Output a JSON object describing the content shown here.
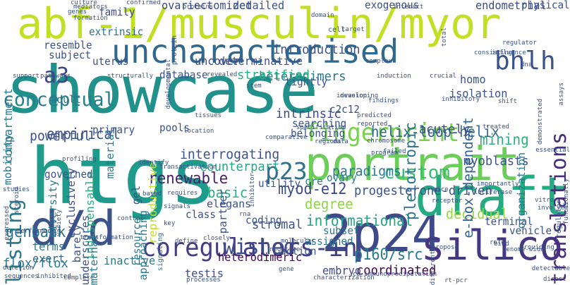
{
  "words": [
    {
      "text": "showcase",
      "color": "#21918c",
      "rotated": false
    },
    {
      "text": "htgs",
      "color": "#1e9b8a",
      "rotated": false
    },
    {
      "text": "abf-1/musculin/myor",
      "color": "#c2df23",
      "rotated": false
    },
    {
      "text": "uncharacterised",
      "color": "#31688e",
      "rotated": false
    },
    {
      "text": "portrait",
      "color": "#6ccd5a",
      "rotated": false
    },
    {
      "text": "2p24",
      "color": "#3e4a89",
      "rotated": false
    },
    {
      "text": "draft",
      "color": "#25ab82",
      "rotated": false
    },
    {
      "text": "d/d",
      "color": "#3b528b",
      "rotated": false
    },
    {
      "text": "silico",
      "color": "#453781",
      "rotated": false
    },
    {
      "text": "coregulators-in",
      "color": "#433d84",
      "rotated": false
    },
    {
      "text": "fingerprint",
      "color": "#7ad151",
      "rotated": false
    },
    {
      "text": "translations",
      "color": "#472c7a",
      "rotated": true
    },
    {
      "text": "wished",
      "color": "#3e4a89",
      "rotated": false
    },
    {
      "text": "listing",
      "color": "#2a788e",
      "rotated": true
    },
    {
      "text": "helix-loop-helix",
      "color": "#31688e",
      "rotated": false
    },
    {
      "text": "bhlh",
      "color": "#3b528b",
      "rotated": false
    },
    {
      "text": "p23",
      "color": "#2c728e",
      "rotated": false
    },
    {
      "text": "a3",
      "color": "#414487",
      "rotated": false
    },
    {
      "text": "custom",
      "color": "#3dbc74",
      "rotated": false
    },
    {
      "text": "renewable",
      "color": "#481f70",
      "rotated": false
    },
    {
      "text": "empirical",
      "color": "#3b528b",
      "rotated": false
    },
    {
      "text": "informational",
      "color": "#22a785",
      "rotated": false
    },
    {
      "text": "myod-e12",
      "color": "#3e4a89",
      "rotated": false
    },
    {
      "text": "conceptual",
      "color": "#277f8e",
      "rotated": false
    },
    {
      "text": "genbank",
      "color": "#2c728e",
      "rotated": false
    },
    {
      "text": "p160/src",
      "color": "#297a8e",
      "rotated": false
    },
    {
      "text": "decidual",
      "color": "#95d840",
      "rotated": false
    },
    {
      "text": "mining",
      "color": "#2db27d",
      "rotated": false
    },
    {
      "text": "basic",
      "color": "#29af7f",
      "rotated": false
    },
    {
      "text": "degree",
      "color": "#8fd744",
      "rotated": false
    },
    {
      "text": "introduction",
      "color": "#3b528b",
      "rotated": false
    },
    {
      "text": "intrinsic",
      "color": "#3e4a89",
      "rotated": false
    },
    {
      "text": "stromal",
      "color": "#3b528b",
      "rotated": false
    },
    {
      "text": "heterodimers",
      "color": "#2a788e",
      "rotated": false
    },
    {
      "text": "coordinated",
      "color": "#440154",
      "rotated": false
    },
    {
      "text": "pleiotropic",
      "color": "#2c728e",
      "rotated": true
    },
    {
      "text": "e-box-dependent",
      "color": "#33638d",
      "rotated": true
    },
    {
      "text": "interrogating",
      "color": "#3b528b",
      "rotated": false
    },
    {
      "text": "paradigms",
      "color": "#2a788e",
      "rotated": false
    },
    {
      "text": "myoblasts",
      "color": "#3b528b",
      "rotated": false
    },
    {
      "text": "counterpart",
      "color": "#22a785",
      "rotated": false
    },
    {
      "text": "powerful",
      "color": "#3b528b",
      "rotated": false
    },
    {
      "text": "acutely",
      "color": "#3e4a89",
      "rotated": false
    },
    {
      "text": "stratified",
      "color": "#26ad81",
      "rotated": false
    },
    {
      "text": "progesterone-driven",
      "color": "#3b528b",
      "rotated": false
    },
    {
      "text": "heterodimeric",
      "color": "#440154",
      "rotated": false
    },
    {
      "text": "terms",
      "color": "#2a788e",
      "rotated": false
    },
    {
      "text": "flox/flox",
      "color": "#2a788e",
      "rotated": false
    },
    {
      "text": "exert",
      "color": "#31688e",
      "rotated": false
    },
    {
      "text": "testis",
      "color": "#3e4a89",
      "rotated": false
    },
    {
      "text": "inactive",
      "color": "#2a788e",
      "rotated": false
    },
    {
      "text": "embryo",
      "color": "#3e4a89",
      "rotated": false
    },
    {
      "text": "ovariectomized",
      "color": "#3e4a89",
      "rotated": false
    },
    {
      "text": "detailed",
      "color": "#3b528b",
      "rotated": false
    },
    {
      "text": "endometrial",
      "color": "#3e4a89",
      "rotated": false
    },
    {
      "text": "physical",
      "color": "#3b528b",
      "rotated": false
    },
    {
      "text": "exogenous",
      "color": "#3b528b",
      "rotated": false
    },
    {
      "text": "uncover",
      "color": "#3e4a89",
      "rotated": false
    },
    {
      "text": "determinative",
      "color": "#3b528b",
      "rotated": false
    },
    {
      "text": "isolation",
      "color": "#3b528b",
      "rotated": false
    },
    {
      "text": "homo",
      "color": "#3b528b",
      "rotated": false
    },
    {
      "text": "family",
      "color": "#3e4a89",
      "rotated": false
    },
    {
      "text": "extrinsic",
      "color": "#2c728e",
      "rotated": false
    },
    {
      "text": "uterus",
      "color": "#3b528b",
      "rotated": false
    },
    {
      "text": "resemble",
      "color": "#3b528b",
      "rotated": false
    },
    {
      "text": "subject",
      "color": "#3b528b",
      "rotated": false
    },
    {
      "text": "compartment",
      "color": "#2a788e",
      "rotated": true
    },
    {
      "text": "database",
      "color": "#3b528b",
      "rotated": false
    },
    {
      "text": "tightly",
      "color": "#3b528b",
      "rotated": false
    },
    {
      "text": "searching",
      "color": "#3b528b",
      "rotated": false
    },
    {
      "text": "belonging",
      "color": "#3b528b",
      "rotated": false
    },
    {
      "text": "c2c12",
      "color": "#3b528b",
      "rotated": false
    },
    {
      "text": "adult",
      "color": "#2a788e",
      "rotated": false
    },
    {
      "text": "mobility",
      "color": "#2a788e",
      "rotated": true
    },
    {
      "text": "indispensable",
      "color": "#29af7f",
      "rotated": true
    },
    {
      "text": "pools",
      "color": "#3b528b",
      "rotated": false
    },
    {
      "text": "primary",
      "color": "#3b528b",
      "rotated": false
    },
    {
      "text": "exclusively",
      "color": "#3b528b",
      "rotated": true
    },
    {
      "text": "material",
      "color": "#2a788e",
      "rotated": true
    },
    {
      "text": "reproductive",
      "color": "#c8e020",
      "rotated": true
    },
    {
      "text": "governed",
      "color": "#3b528b",
      "rotated": false
    },
    {
      "text": "utility",
      "color": "#3b528b",
      "rotated": false
    },
    {
      "text": "resource",
      "color": "#2a788e",
      "rotated": true
    },
    {
      "text": "elegans",
      "color": "#3b528b",
      "rotated": false
    },
    {
      "text": "diversity",
      "color": "#2a788e",
      "rotated": true
    },
    {
      "text": "underscores",
      "color": "#3b528b",
      "rotated": true
    },
    {
      "text": "barely",
      "color": "#3b528b",
      "rotated": true
    },
    {
      "text": "approaching",
      "color": "#2a788e",
      "rotated": true
    },
    {
      "text": "partner",
      "color": "#3b528b",
      "rotated": true
    },
    {
      "text": "class",
      "color": "#3b528b",
      "rotated": false
    },
    {
      "text": "coding",
      "color": "#3b528b",
      "rotated": false
    },
    {
      "text": "action",
      "color": "#3b528b",
      "rotated": false
    },
    {
      "text": "assigned",
      "color": "#2a788e",
      "rotated": false
    },
    {
      "text": "subset",
      "color": "#2a788e",
      "rotated": false
    },
    {
      "text": "vehicle",
      "color": "#3b528b",
      "rotated": false
    },
    {
      "text": "terminal",
      "color": "#3b528b",
      "rotated": false
    },
    {
      "text": "ovary",
      "color": "#2a788e",
      "rotated": false
    },
    {
      "text": "cre",
      "color": "#2a788e",
      "rotated": false
    },
    {
      "text": "gel",
      "color": "#3b528b",
      "rotated": true
    },
    {
      "text": "maternal",
      "color": "#2a788e",
      "rotated": true
    },
    {
      "text": "organization",
      "color": "#2a788e",
      "rotated": true
    },
    {
      "text": "signaling",
      "color": "#2a788e",
      "rotated": true
    },
    {
      "text": "regulator",
      "color": "#3b528b",
      "rotated": true
    },
    {
      "text": "protein",
      "color": "#3b528b",
      "rotated": true
    },
    {
      "text": "culture",
      "color": "#3b528b",
      "rotated": false
    },
    {
      "text": "mediators",
      "color": "#3b528b",
      "rotated": false
    },
    {
      "text": "confirmed",
      "color": "#3b528b",
      "rotated": false
    },
    {
      "text": "proteins",
      "color": "#3b528b",
      "rotated": false
    },
    {
      "text": "domain",
      "color": "#3b528b",
      "rotated": false
    },
    {
      "text": "interact",
      "color": "#3b528b",
      "rotated": false
    },
    {
      "text": "genes",
      "color": "#3b528b",
      "rotated": false
    },
    {
      "text": "formation",
      "color": "#3b528b",
      "rotated": false
    },
    {
      "text": "developmental",
      "color": "#3b528b",
      "rotated": true
    },
    {
      "text": "cell",
      "color": "#3b528b",
      "rotated": false
    },
    {
      "text": "target",
      "color": "#3b528b",
      "rotated": false
    },
    {
      "text": "total",
      "color": "#3b528b",
      "rotated": true
    },
    {
      "text": "regulator",
      "color": "#3b528b",
      "rotated": false
    },
    {
      "text": "consisting",
      "color": "#3b528b",
      "rotated": false
    },
    {
      "text": "influence",
      "color": "#3b528b",
      "rotated": false
    },
    {
      "text": "complex",
      "color": "#3b528b",
      "rotated": false
    },
    {
      "text": "induction",
      "color": "#3b528b",
      "rotated": false
    },
    {
      "text": "crucial",
      "color": "#3b528b",
      "rotated": false
    },
    {
      "text": "dna",
      "color": "#3b528b",
      "rotated": false
    },
    {
      "text": "support",
      "color": "#3b528b",
      "rotated": false
    },
    {
      "text": "pathways",
      "color": "#3b528b",
      "rotated": false
    },
    {
      "text": "structurally",
      "color": "#3b528b",
      "rotated": false
    },
    {
      "text": "revealed",
      "color": "#3b528b",
      "rotated": false
    },
    {
      "text": "stem",
      "color": "#3b528b",
      "rotated": false
    },
    {
      "text": "developing",
      "color": "#3b528b",
      "rotated": false
    },
    {
      "text": "findings",
      "color": "#3b528b",
      "rotated": false
    },
    {
      "text": "invasion",
      "color": "#3b528b",
      "rotated": false
    },
    {
      "text": "inhibitory",
      "color": "#3b528b",
      "rotated": false
    },
    {
      "text": "shift",
      "color": "#3b528b",
      "rotated": false
    },
    {
      "text": "predicted",
      "color": "#3b528b",
      "rotated": false
    },
    {
      "text": "reported",
      "color": "#3b528b",
      "rotated": false
    },
    {
      "text": "demonstrated",
      "color": "#3b528b",
      "rotated": true
    },
    {
      "text": "assays",
      "color": "#3b528b",
      "rotated": true
    },
    {
      "text": "profiling",
      "color": "#3b528b",
      "rotated": false
    },
    {
      "text": "location",
      "color": "#3b528b",
      "rotated": false
    },
    {
      "text": "tissues",
      "color": "#3b528b",
      "rotated": false
    },
    {
      "text": "specification",
      "color": "#3b528b",
      "rotated": false
    },
    {
      "text": "regions",
      "color": "#3b528b",
      "rotated": false
    },
    {
      "text": "data",
      "color": "#3b528b",
      "rotated": false
    },
    {
      "text": "treated",
      "color": "#3b528b",
      "rotated": false
    },
    {
      "text": "transactivation",
      "color": "#3b528b",
      "rotated": false
    },
    {
      "text": "identify",
      "color": "#3b528b",
      "rotated": false
    },
    {
      "text": "requires",
      "color": "#3b528b",
      "rotated": false
    },
    {
      "text": "comparative",
      "color": "#3b528b",
      "rotated": false
    },
    {
      "text": "chromosome",
      "color": "#3b528b",
      "rotated": false
    },
    {
      "text": "failed",
      "color": "#3b528b",
      "rotated": false
    },
    {
      "text": "program",
      "color": "#3b528b",
      "rotated": false
    },
    {
      "text": "essential",
      "color": "#3b528b",
      "rotated": false
    },
    {
      "text": "studies",
      "color": "#3b528b",
      "rotated": false
    },
    {
      "text": "steroid",
      "color": "#3b528b",
      "rotated": true
    },
    {
      "text": "based",
      "color": "#3b528b",
      "rotated": false
    },
    {
      "text": "signals",
      "color": "#3b528b",
      "rotated": false
    },
    {
      "text": "inhibitor",
      "color": "#3b528b",
      "rotated": true
    },
    {
      "text": "mice",
      "color": "#3b528b",
      "rotated": false
    },
    {
      "text": "receptor",
      "color": "#3b528b",
      "rotated": false
    },
    {
      "text": "importantly",
      "color": "#3b528b",
      "rotated": false
    },
    {
      "text": "luciferase",
      "color": "#3b528b",
      "rotated": false
    },
    {
      "text": "expressed",
      "color": "#3b528b",
      "rotated": true
    },
    {
      "text": "variety",
      "color": "#3b528b",
      "rotated": true
    },
    {
      "text": "control",
      "color": "#3b528b",
      "rotated": false
    },
    {
      "text": "key",
      "color": "#3b528b",
      "rotated": false
    },
    {
      "text": "rna",
      "color": "#3b528b",
      "rotated": false
    },
    {
      "text": "vitro",
      "color": "#3b528b",
      "rotated": false
    },
    {
      "text": "involved",
      "color": "#3b528b",
      "rotated": false
    },
    {
      "text": "functionally",
      "color": "#3b528b",
      "rotated": true
    },
    {
      "text": "performed",
      "color": "#3b528b",
      "rotated": false
    },
    {
      "text": "transformation",
      "color": "#3b528b",
      "rotated": false
    },
    {
      "text": "define",
      "color": "#3b528b",
      "rotated": false
    },
    {
      "text": "closely",
      "color": "#3b528b",
      "rotated": false
    },
    {
      "text": "negative",
      "color": "#3b528b",
      "rotated": false
    },
    {
      "text": "molecular",
      "color": "#3b528b",
      "rotated": false
    },
    {
      "text": "propose",
      "color": "#3b528b",
      "rotated": false
    },
    {
      "text": "differentiation",
      "color": "#3b528b",
      "rotated": true
    },
    {
      "text": "bind",
      "color": "#3b528b",
      "rotated": false
    },
    {
      "text": "role",
      "color": "#3b528b",
      "rotated": false
    },
    {
      "text": "genome-wide",
      "color": "#3b528b",
      "rotated": false
    },
    {
      "text": "providing",
      "color": "#3b528b",
      "rotated": false
    },
    {
      "text": "deletion",
      "color": "#3b528b",
      "rotated": false
    },
    {
      "text": "sequences",
      "color": "#3b528b",
      "rotated": false
    },
    {
      "text": "inhibited",
      "color": "#3b528b",
      "rotated": false
    },
    {
      "text": "complete",
      "color": "#3b528b",
      "rotated": false
    },
    {
      "text": "processes",
      "color": "#3b528b",
      "rotated": false
    },
    {
      "text": "characterization",
      "color": "#3b528b",
      "rotated": false
    },
    {
      "text": "gene",
      "color": "#3b528b",
      "rotated": false
    },
    {
      "text": "co-immunoprecipitation",
      "color": "#3b528b",
      "rotated": false
    },
    {
      "text": "rt-pcr",
      "color": "#3b528b",
      "rotated": false
    },
    {
      "text": "detectable",
      "color": "#3b528b",
      "rotated": false
    },
    {
      "text": "direct",
      "color": "#3b528b",
      "rotated": false
    }
  ]
}
